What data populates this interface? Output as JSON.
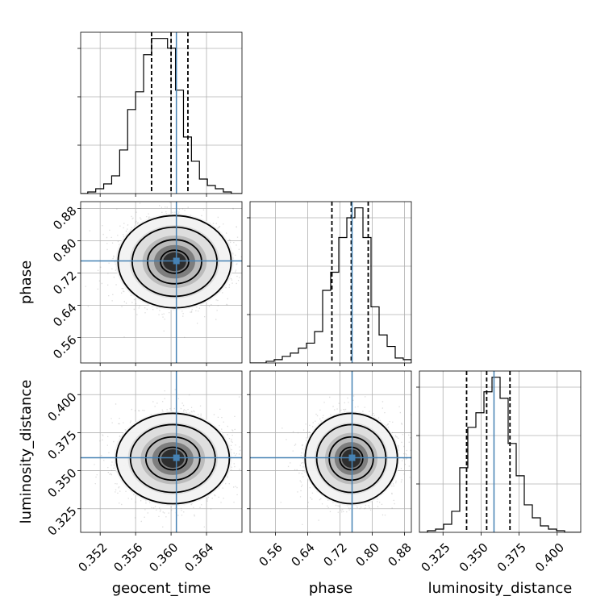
{
  "chart_data": {
    "type": "corner",
    "parameters": [
      {
        "name": "geocent_time",
        "label": "geocent_time",
        "range": [
          0.3498,
          0.368
        ],
        "ticks": [
          0.352,
          0.356,
          0.36,
          0.364
        ],
        "tick_labels": [
          "0.352",
          "0.356",
          "0.360",
          "0.364"
        ],
        "truth": 0.3606,
        "quantiles": [
          0.3578,
          0.36,
          0.3619
        ]
      },
      {
        "name": "phase",
        "label": "phase",
        "range": [
          0.497,
          0.897
        ],
        "ticks": [
          0.56,
          0.64,
          0.72,
          0.8,
          0.88
        ],
        "tick_labels": [
          "0.56",
          "0.64",
          "0.72",
          "0.80",
          "0.88"
        ],
        "truth": 0.75,
        "quantiles": [
          0.7,
          0.748,
          0.79
        ]
      },
      {
        "name": "luminosity_distance",
        "label": "luminosity_distance",
        "range": [
          0.3095,
          0.4155
        ],
        "ticks": [
          0.325,
          0.35,
          0.375,
          0.4
        ],
        "tick_labels": [
          "0.325",
          "0.350",
          "0.375",
          "0.400"
        ],
        "truth": 0.3585,
        "quantiles": [
          0.3405,
          0.3537,
          0.369
        ]
      }
    ],
    "histograms": [
      {
        "param": "geocent_time",
        "bin_edges": [
          0.3498,
          0.3506,
          0.3515,
          0.3524,
          0.3533,
          0.3542,
          0.3551,
          0.356,
          0.3569,
          0.3578,
          0.3587,
          0.3596,
          0.3605,
          0.3614,
          0.3623,
          0.3632,
          0.3641,
          0.365,
          0.3659,
          0.3668,
          0.368
        ],
        "counts": [
          0,
          1,
          3,
          6,
          11,
          27,
          52,
          63,
          86,
          96,
          96,
          90,
          64,
          35,
          20,
          9,
          5,
          3,
          1,
          0
        ]
      },
      {
        "param": "phase",
        "bin_edges": [
          0.497,
          0.517,
          0.537,
          0.557,
          0.577,
          0.597,
          0.617,
          0.637,
          0.657,
          0.677,
          0.697,
          0.717,
          0.737,
          0.757,
          0.777,
          0.797,
          0.817,
          0.837,
          0.857,
          0.877,
          0.897
        ],
        "counts": [
          0,
          0,
          1,
          2,
          4,
          6,
          9,
          12,
          19,
          44,
          55,
          76,
          88,
          94,
          76,
          34,
          17,
          10,
          3,
          2
        ]
      },
      {
        "param": "luminosity_distance",
        "bin_edges": [
          0.3095,
          0.3148,
          0.3201,
          0.3254,
          0.3307,
          0.336,
          0.3413,
          0.3466,
          0.3519,
          0.3572,
          0.3625,
          0.3678,
          0.3731,
          0.3784,
          0.3837,
          0.389,
          0.3943,
          0.3996,
          0.4049,
          0.4102,
          0.4155
        ],
        "counts": [
          0,
          1,
          2,
          5,
          13,
          40,
          65,
          74,
          87,
          96,
          83,
          55,
          35,
          17,
          9,
          4,
          2,
          1,
          0,
          0
        ]
      }
    ],
    "joint": [
      {
        "x": "geocent_time",
        "y": "phase",
        "center": [
          0.3604,
          0.748
        ],
        "sd": [
          0.0029,
          0.052
        ]
      },
      {
        "x": "geocent_time",
        "y": "luminosity_distance",
        "center": [
          0.3602,
          0.358
        ],
        "sd": [
          0.0029,
          0.0135
        ]
      },
      {
        "x": "phase",
        "y": "luminosity_distance",
        "center": [
          0.748,
          0.358
        ],
        "sd": [
          0.052,
          0.0135
        ]
      }
    ],
    "truth_color": "#4682b4",
    "quantile_line_style": "dashed",
    "grid": true
  }
}
